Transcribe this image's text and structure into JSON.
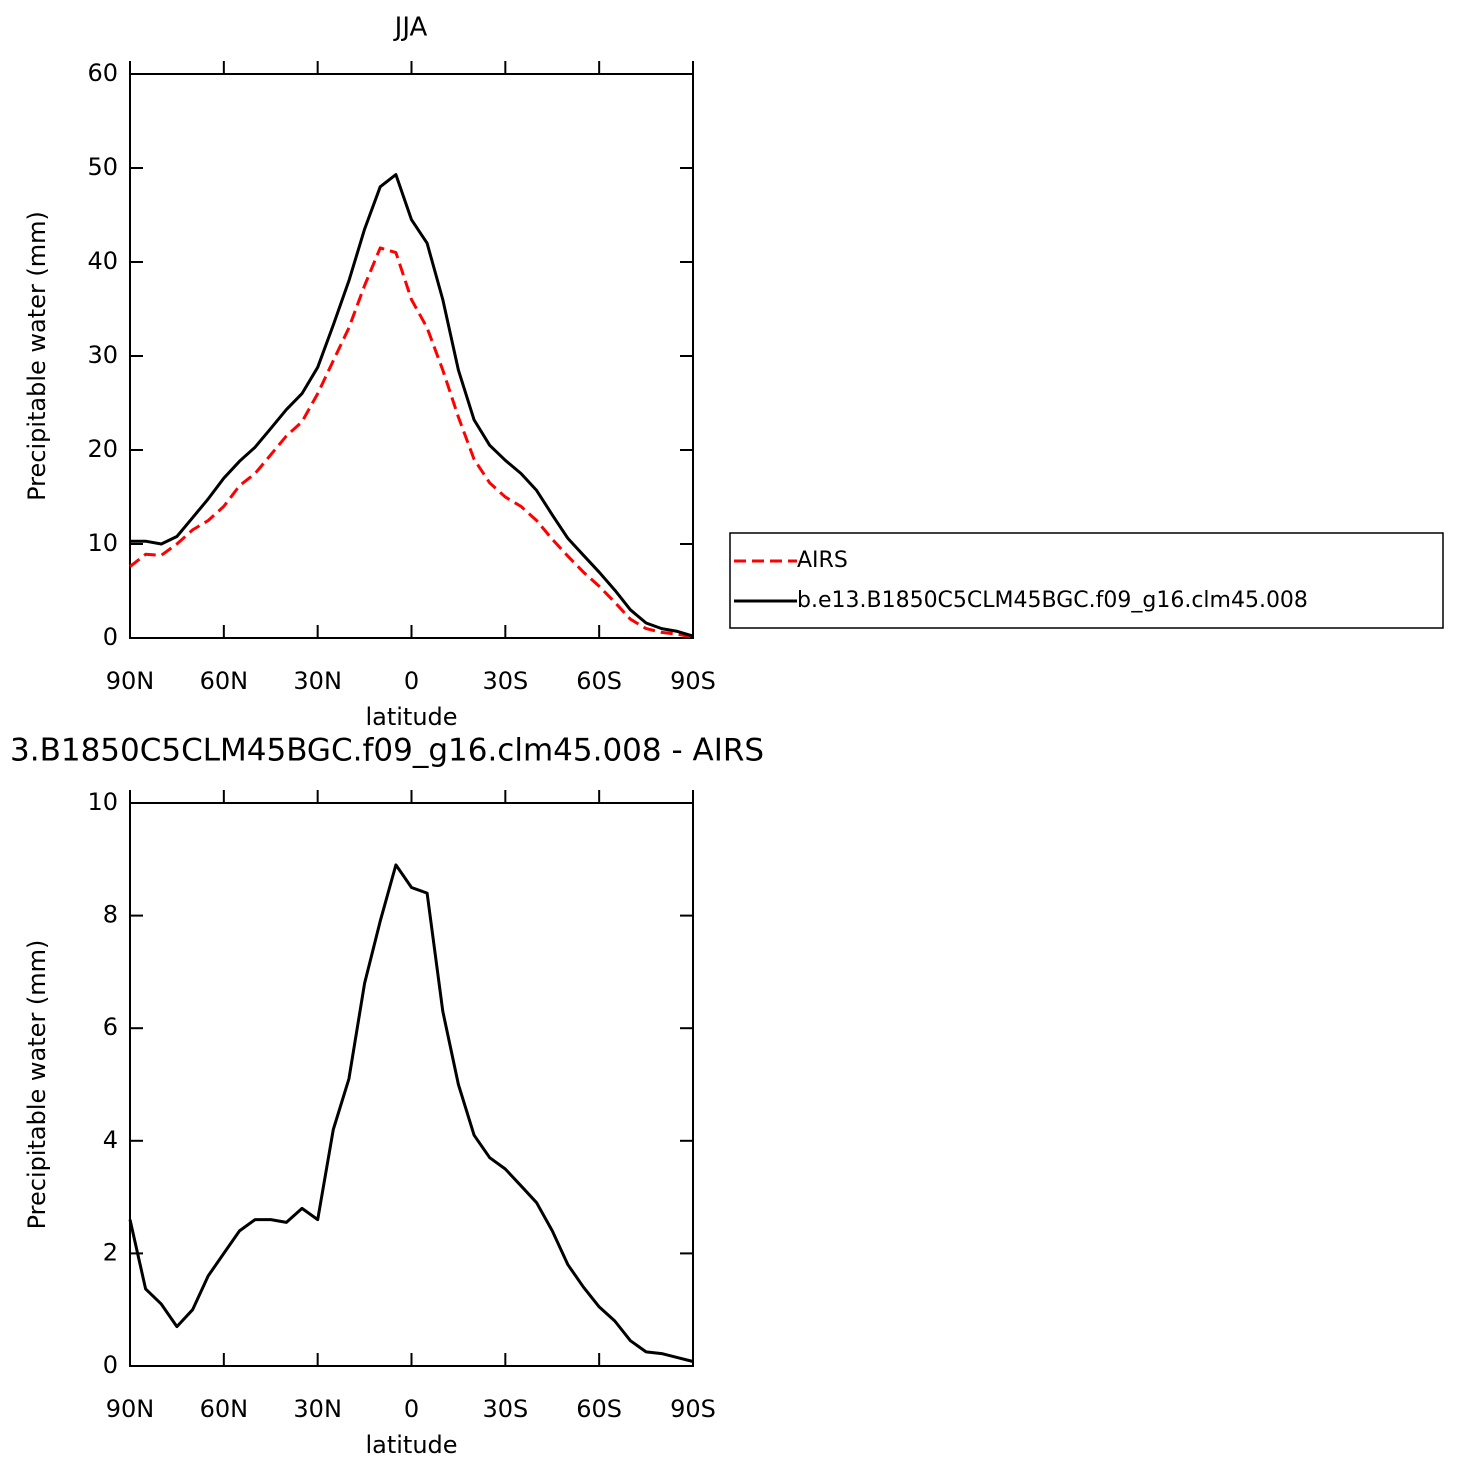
{
  "chart_data": [
    {
      "type": "line",
      "title": "JJA",
      "xlabel": "latitude",
      "ylabel": "Precipitable water (mm)",
      "xlim": [
        90,
        -90
      ],
      "xticks": [
        {
          "value": 90,
          "label": "90N"
        },
        {
          "value": 60,
          "label": "60N"
        },
        {
          "value": 30,
          "label": "30N"
        },
        0,
        {
          "value": -30,
          "label": "30S"
        },
        {
          "value": -60,
          "label": "60S"
        },
        {
          "value": -90,
          "label": "90S"
        }
      ],
      "ylim": [
        0,
        60
      ],
      "yticks": [
        0,
        10,
        20,
        30,
        40,
        50,
        60
      ],
      "x": [
        90,
        85,
        80,
        75,
        70,
        65,
        60,
        55,
        50,
        45,
        40,
        35,
        30,
        25,
        20,
        15,
        10,
        5,
        0,
        -5,
        -10,
        -15,
        -20,
        -25,
        -30,
        -35,
        -40,
        -45,
        -50,
        -55,
        -60,
        -65,
        -70,
        -75,
        -80,
        -85,
        -90
      ],
      "legend": "right",
      "series": [
        {
          "name": "AIRS",
          "color": "#ff0000",
          "dashed": true,
          "values": [
            7.6,
            8.9,
            8.8,
            10.0,
            11.5,
            12.5,
            14.0,
            16.2,
            17.5,
            19.5,
            21.5,
            23.0,
            26.0,
            29.5,
            33.0,
            37.5,
            41.5,
            41.0,
            36.0,
            33.0,
            28.5,
            23.5,
            19.0,
            16.5,
            15.0,
            14.0,
            12.5,
            10.5,
            8.7,
            7.0,
            5.5,
            3.8,
            2.0,
            1.0,
            0.6,
            0.4,
            0.1
          ]
        },
        {
          "name": "b.e13.B1850C5CLM45BGC.f09_g16.clm45.008",
          "color": "#000000",
          "dashed": false,
          "values": [
            10.3,
            10.3,
            10.0,
            10.8,
            12.8,
            14.8,
            17.0,
            18.8,
            20.3,
            22.3,
            24.3,
            26.0,
            28.8,
            33.3,
            38.0,
            43.5,
            48.0,
            49.3,
            44.5,
            42.0,
            36.0,
            28.5,
            23.2,
            20.5,
            18.9,
            17.5,
            15.7,
            13.1,
            10.6,
            8.8,
            7.0,
            5.1,
            3.0,
            1.6,
            1.0,
            0.7,
            0.2
          ]
        }
      ]
    },
    {
      "type": "line",
      "title": "3.B1850C5CLM45BGC.f09_g16.clm45.008 - AIRS",
      "xlabel": "latitude",
      "ylabel": "Precipitable water (mm)",
      "xlim": [
        90,
        -90
      ],
      "xticks": [
        {
          "value": 90,
          "label": "90N"
        },
        {
          "value": 60,
          "label": "60N"
        },
        {
          "value": 30,
          "label": "30N"
        },
        0,
        {
          "value": -30,
          "label": "30S"
        },
        {
          "value": -60,
          "label": "60S"
        },
        {
          "value": -90,
          "label": "90S"
        }
      ],
      "ylim": [
        0,
        10
      ],
      "yticks": [
        0,
        2,
        4,
        6,
        8,
        10
      ],
      "x": [
        90,
        85,
        80,
        75,
        70,
        65,
        60,
        55,
        50,
        45,
        40,
        35,
        30,
        25,
        20,
        15,
        10,
        5,
        0,
        -5,
        -10,
        -15,
        -20,
        -25,
        -30,
        -35,
        -40,
        -45,
        -50,
        -55,
        -60,
        -65,
        -70,
        -75,
        -80,
        -85,
        -90
      ],
      "series": [
        {
          "color": "#000000",
          "dashed": false,
          "values": [
            2.6,
            1.37,
            1.1,
            0.7,
            1.0,
            1.6,
            2.0,
            2.4,
            2.6,
            2.6,
            2.55,
            2.8,
            2.6,
            4.2,
            5.1,
            6.8,
            7.9,
            8.9,
            8.5,
            8.4,
            6.3,
            5.0,
            4.1,
            3.7,
            3.5,
            3.2,
            2.9,
            2.4,
            1.8,
            1.4,
            1.05,
            0.8,
            0.45,
            0.25,
            0.22,
            0.15,
            0.08
          ]
        }
      ]
    }
  ]
}
